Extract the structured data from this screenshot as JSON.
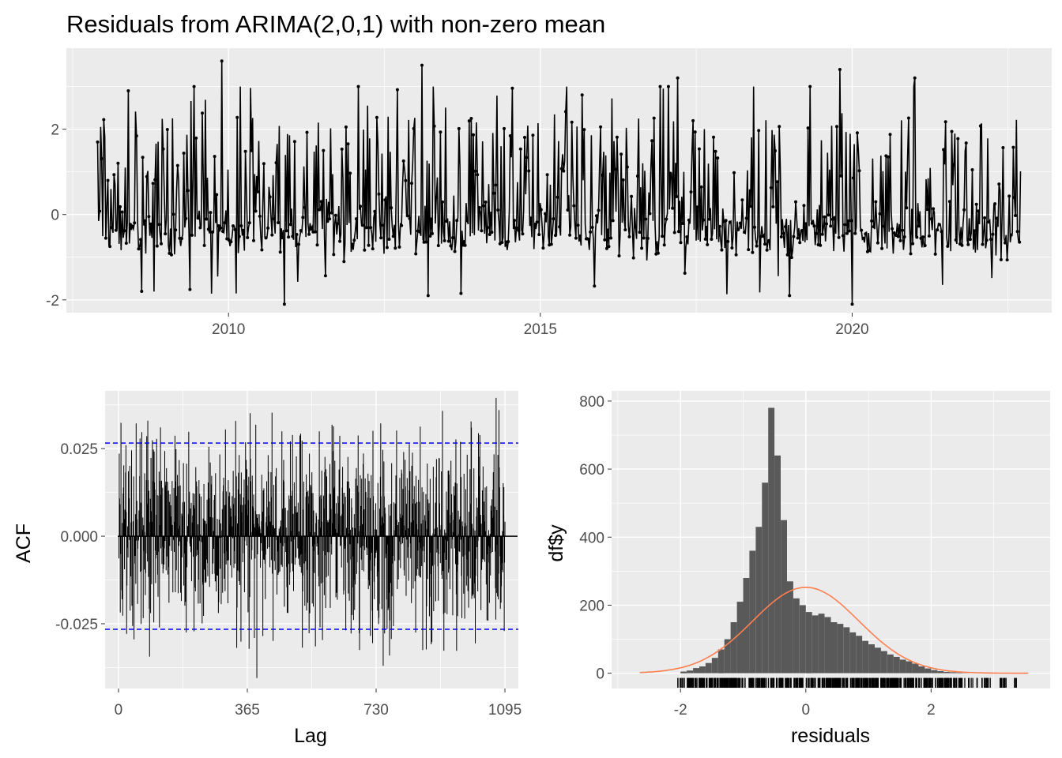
{
  "colors": {
    "panel_bg": "#ebebeb",
    "grid_major": "#ffffff",
    "series": "#000000",
    "ci_line": "#0000ff",
    "bar_fill": "#595959",
    "density_line": "#ff7f50",
    "tick_text": "#4d4d4d"
  },
  "chart_data": [
    {
      "type": "line",
      "title": "Residuals from ARIMA(2,0,1) with non-zero mean",
      "xlabel": "",
      "ylabel": "",
      "xlim": [
        2007.4,
        2023.2
      ],
      "ylim": [
        -2.3,
        3.9
      ],
      "x_ticks": [
        "2010",
        "2015",
        "2020"
      ],
      "y_ticks": [
        "-2",
        "0",
        "2"
      ],
      "x_range": [
        2007.9,
        2022.7
      ],
      "grid": true,
      "markers": true,
      "sample_points": [
        {
          "x": 2007.9,
          "y": 1.7
        },
        {
          "x": 2008.4,
          "y": 2.9
        },
        {
          "x": 2008.6,
          "y": -1.8
        },
        {
          "x": 2009.9,
          "y": 3.6
        },
        {
          "x": 2010.9,
          "y": -2.1
        },
        {
          "x": 2013.1,
          "y": 3.5
        },
        {
          "x": 2013.2,
          "y": -1.9
        },
        {
          "x": 2017.2,
          "y": 3.2
        },
        {
          "x": 2019.0,
          "y": -1.9
        },
        {
          "x": 2019.8,
          "y": 3.4
        },
        {
          "x": 2020.0,
          "y": -2.1
        },
        {
          "x": 2021.0,
          "y": 3.2
        },
        {
          "x": 2022.6,
          "y": 0.4
        }
      ]
    },
    {
      "type": "bar",
      "xlabel": "Lag",
      "ylabel": "ACF",
      "xlim": [
        -38,
        1133
      ],
      "ylim": [
        -0.0435,
        0.0415
      ],
      "x_ticks": [
        "0",
        "365",
        "730",
        "1095"
      ],
      "y_ticks": [
        "-0.025",
        "0.000",
        "0.025"
      ],
      "ci_bounds": [
        -0.0266,
        0.0266
      ],
      "lag_range": [
        1,
        1095
      ],
      "extremes": [
        {
          "lag": 392,
          "acf": -0.0405
        },
        {
          "lag": 1070,
          "acf": 0.0395
        },
        {
          "lag": 1078,
          "acf": 0.036
        },
        {
          "lag": 750,
          "acf": -0.037
        }
      ]
    },
    {
      "type": "bar",
      "xlabel": "residuals",
      "ylabel": "df$y",
      "xlim": [
        -3.1,
        3.9
      ],
      "ylim": [
        -45,
        830
      ],
      "x_ticks": [
        "-2",
        "0",
        "2"
      ],
      "y_ticks": [
        "0",
        "200",
        "400",
        "600",
        "800"
      ],
      "bin_width": 0.1,
      "bin_start": -2.0,
      "counts": [
        5,
        8,
        15,
        20,
        30,
        45,
        70,
        100,
        150,
        210,
        280,
        360,
        430,
        560,
        780,
        640,
        450,
        270,
        220,
        200,
        180,
        170,
        175,
        165,
        150,
        145,
        135,
        120,
        110,
        95,
        85,
        75,
        65,
        55,
        48,
        40,
        35,
        28,
        20,
        14,
        9,
        6,
        4,
        3,
        2,
        1
      ],
      "density_curve": {
        "mean": 0.0,
        "sd": 0.85,
        "n": 5380,
        "bin_width": 0.1,
        "x_range": [
          -2.65,
          3.55
        ]
      },
      "rug_range": [
        -2.05,
        3.4
      ]
    }
  ]
}
